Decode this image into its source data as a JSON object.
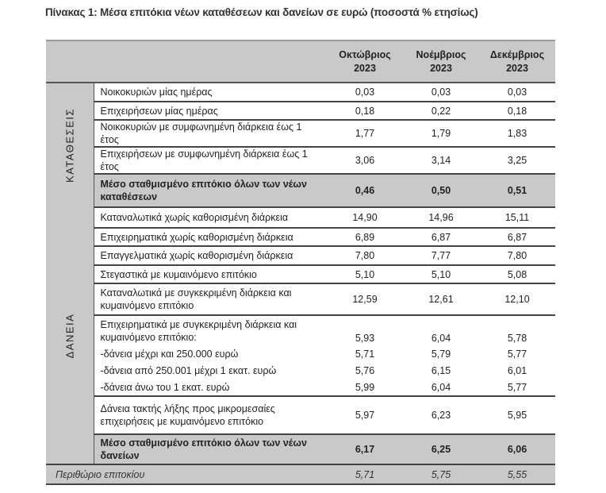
{
  "title": "Πίνακας 1: Μέσα επιτόκια νέων καταθέσεων και δανείων σε ευρώ (ποσοστά % ετησίως)",
  "columns": [
    "Οκτώβριος 2023",
    "Νοέμβριος 2023",
    "Δεκέμβριος 2023"
  ],
  "deposits": {
    "category": "ΚΑΤΑΘΕΣΕΙΣ",
    "rows": [
      {
        "label": "Νοικοκυριών μίας ημέρας",
        "values": [
          "0,03",
          "0,03",
          "0,03"
        ]
      },
      {
        "label": "Επιχειρήσεων μίας ημέρας",
        "values": [
          "0,18",
          "0,22",
          "0,18"
        ]
      },
      {
        "label": "Νοικοκυριών με συμφωνημένη διάρκεια έως 1 έτος",
        "values": [
          "1,77",
          "1,79",
          "1,83"
        ]
      },
      {
        "label": "Επιχειρήσεων με συμφωνημένη διάρκεια έως 1 έτος",
        "values": [
          "3,06",
          "3,14",
          "3,25"
        ]
      }
    ],
    "total": {
      "label": "Μέσο σταθμισμένο επιτόκιο όλων των νέων καταθέσεων",
      "values": [
        "0,46",
        "0,50",
        "0,51"
      ]
    }
  },
  "loans": {
    "category": "ΔΑΝΕΙΑ",
    "rows": [
      {
        "label": "Καταναλωτικά χωρίς καθορισμένη διάρκεια",
        "values": [
          "14,90",
          "14,96",
          "15,11"
        ]
      },
      {
        "label": "Επιχειρηματικά χωρίς καθορισμένη διάρκεια",
        "values": [
          "6,89",
          "6,87",
          "6,87"
        ]
      },
      {
        "label": "Επαγγελματικά χωρίς καθορισμένη διάρκεια",
        "values": [
          "7,80",
          "7,77",
          "7,80"
        ]
      },
      {
        "label": "Στεγαστικά με κυμαινόμενο επιτόκιο",
        "values": [
          "5,10",
          "5,10",
          "5,08"
        ]
      },
      {
        "label": "Καταναλωτικά με συγκεκριμένη διάρκεια και κυμαινόμενο επιτόκιο",
        "values": [
          "12,59",
          "12,61",
          "12,10"
        ]
      },
      {
        "label": "Επιχειρηματικά με συγκεκριμένη διάρκεια και κυμαινόμενο επιτόκιο:",
        "values": [
          "5,93",
          "6,04",
          "5,78"
        ]
      },
      {
        "label": "-δάνεια μέχρι και 250.000 ευρώ",
        "values": [
          "5,71",
          "5,79",
          "5,77"
        ]
      },
      {
        "label": "-δάνεια από 250.001 μέχρι 1 εκατ. ευρώ",
        "values": [
          "5,76",
          "6,15",
          "6,01"
        ]
      },
      {
        "label": "-δάνεια άνω του 1 εκατ. ευρώ",
        "values": [
          "5,99",
          "6,04",
          "5,77"
        ]
      },
      {
        "label": "Δάνεια τακτής λήξης προς μικρομεσαίες επιχειρήσεις με κυμαινόμενο επιτόκιο",
        "values": [
          "5,97",
          "6,23",
          "5,95"
        ]
      }
    ],
    "total": {
      "label": "Μέσο σταθμισμένο επιτόκιο όλων των νέων δανείων",
      "values": [
        "6,17",
        "6,25",
        "6,06"
      ]
    }
  },
  "margin": {
    "label": "Περιθώριο επιτοκίου",
    "values": [
      "5,71",
      "5,75",
      "5,55"
    ]
  }
}
